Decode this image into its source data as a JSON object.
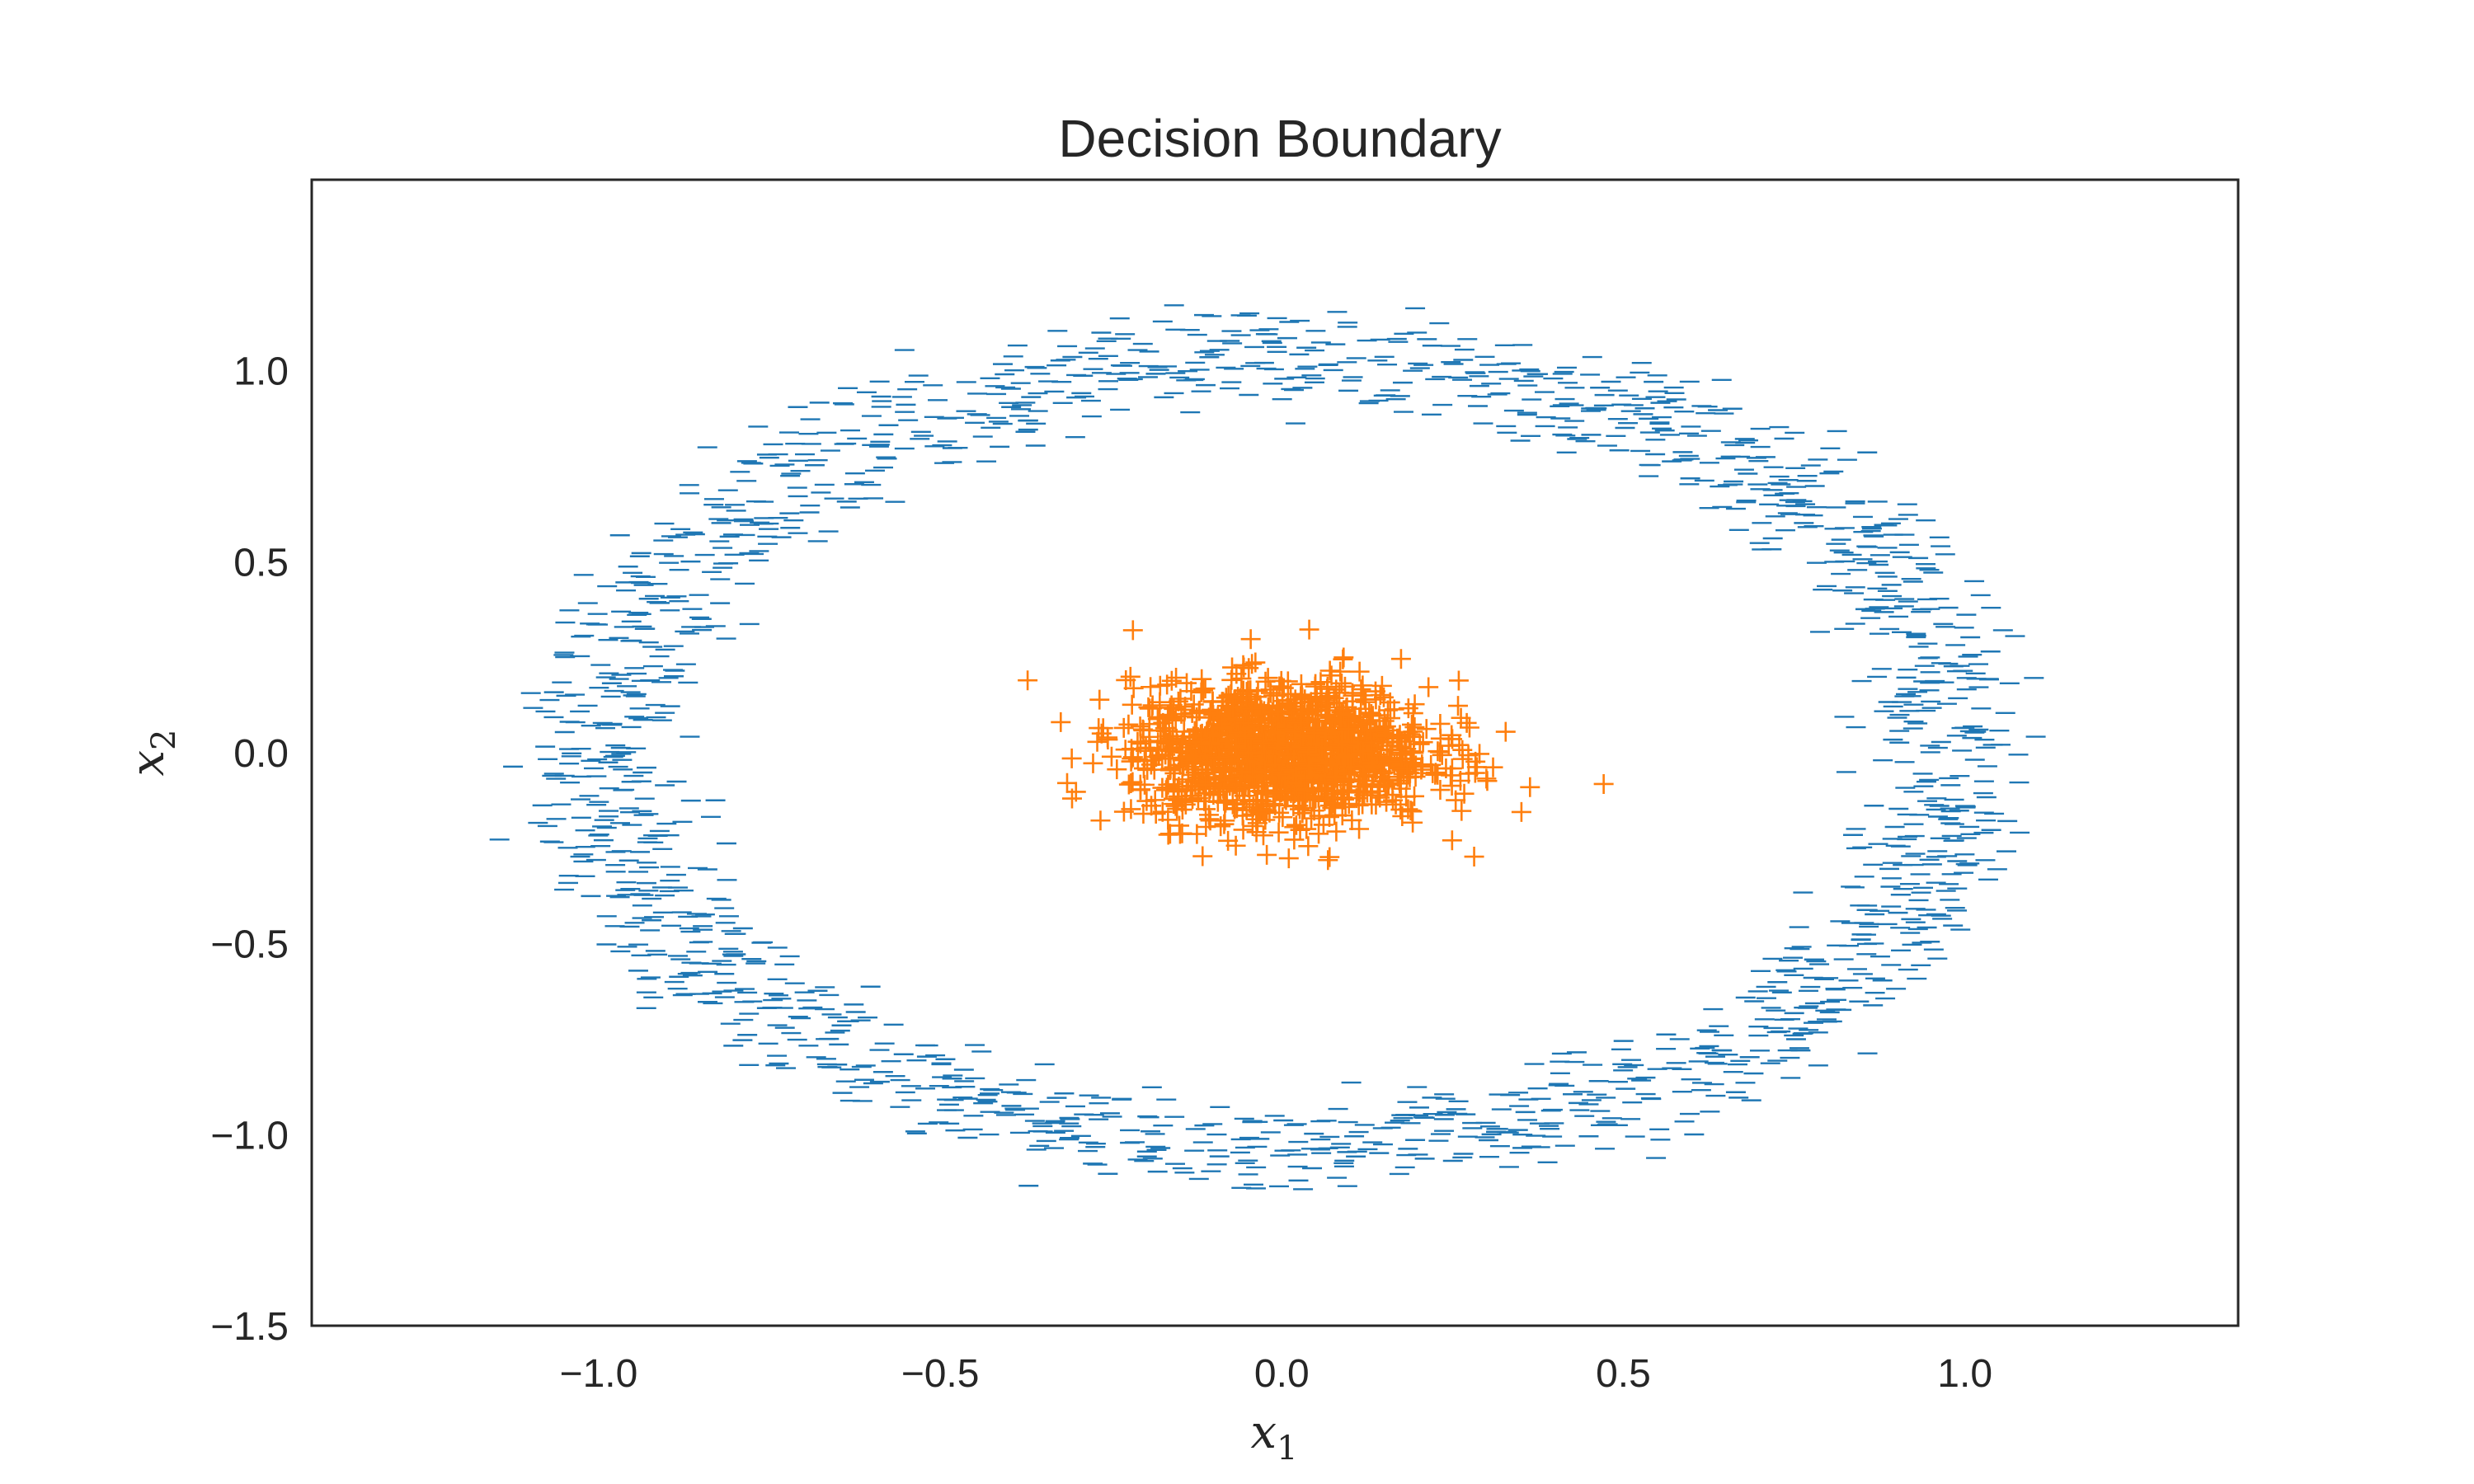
{
  "chart_data": {
    "type": "scatter",
    "title": "Decision Boundary",
    "xlabel": "x",
    "xlabel_sub": "1",
    "ylabel": "x",
    "ylabel_sub": "2",
    "xlim": [
      -1.42,
      1.4
    ],
    "ylim": [
      -1.5,
      1.5
    ],
    "xticks": [
      -1.0,
      -0.5,
      0.0,
      0.5,
      1.0
    ],
    "xtick_labels": [
      "−1.0",
      "−0.5",
      "0.0",
      "0.5",
      "1.0"
    ],
    "yticks": [
      -1.5,
      -1.0,
      -0.5,
      0.0,
      0.5,
      1.0
    ],
    "ytick_labels": [
      "−1.5",
      "−1.0",
      "−0.5",
      "0.0",
      "0.5",
      "1.0"
    ],
    "grid": false,
    "series": [
      {
        "marker": "_",
        "color": "#1f77b4",
        "distribution": {
          "shape": "elliptical-ring",
          "center": [
            0.0,
            0.0
          ],
          "radius_x": [
            0.72,
            1.25
          ],
          "radius_y": [
            0.75,
            1.3
          ],
          "count": 1800
        }
      },
      {
        "marker": "+",
        "color": "#ff7f0e",
        "distribution": {
          "shape": "gaussian-blob",
          "center": [
            0.0,
            0.0
          ],
          "std_x": 0.11,
          "std_y": 0.09,
          "count": 1500
        }
      }
    ]
  }
}
